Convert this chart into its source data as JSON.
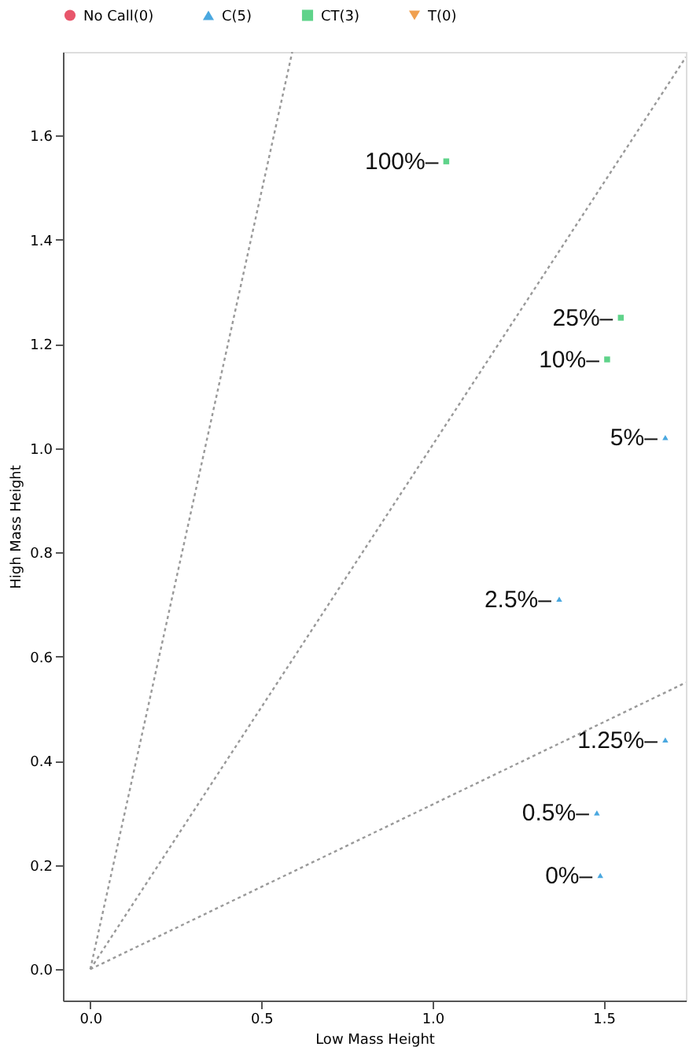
{
  "chart_data": {
    "type": "scatter",
    "xlabel": "Low Mass Height",
    "ylabel": "High Mass Height",
    "xlim": [
      -0.08,
      1.74
    ],
    "ylim": [
      -0.06,
      1.76
    ],
    "xticks": [
      {
        "value": 0,
        "label": "0.0"
      },
      0.5,
      {
        "value": 1,
        "label": "1.0"
      },
      1.5
    ],
    "yticks": [
      {
        "value": 0,
        "label": "0.0"
      },
      0.2,
      0.4,
      0.6,
      0.8,
      {
        "value": 1,
        "label": "1.0"
      },
      1.2,
      1.4,
      1.6
    ],
    "legend": "top",
    "grid": false,
    "series": [
      {
        "name": "No Call(0)",
        "color": "#e8566b",
        "marker": "circle"
      },
      {
        "name": "C(5)",
        "color": "#4aa8e0",
        "marker": "triangle",
        "x": [
          1.68,
          1.37,
          1.68,
          1.48,
          1.49
        ],
        "values": [
          1.02,
          0.71,
          0.44,
          0.3,
          0.18
        ]
      },
      {
        "name": "CT(3)",
        "color": "#5fd38a",
        "marker": "square",
        "x": [
          1.04,
          1.55,
          1.51
        ],
        "values": [
          1.55,
          1.25,
          1.17
        ]
      },
      {
        "name": "T(0)",
        "color": "#f0a050",
        "marker": "triangle-down"
      },
      {
        "type": "line",
        "color": "#999999",
        "line_style": "dotted",
        "x": [
          0,
          0.59
        ],
        "values": [
          0,
          1.76
        ]
      },
      {
        "type": "line",
        "color": "#999999",
        "line_style": "dotted",
        "x": [
          0,
          1.74
        ],
        "values": [
          0,
          1.75
        ]
      },
      {
        "type": "line",
        "color": "#999999",
        "line_style": "dotted",
        "x": [
          0,
          1.74
        ],
        "values": [
          0,
          0.55
        ]
      }
    ],
    "annotations": [
      {
        "text": "100%–",
        "x": 1.04,
        "y": 1.55
      },
      {
        "text": "25%–",
        "x": 1.55,
        "y": 1.25
      },
      {
        "text": "10%–",
        "x": 1.51,
        "y": 1.17
      },
      {
        "text": "5%–",
        "x": 1.68,
        "y": 1.02
      },
      {
        "text": "2.5%–",
        "x": 1.37,
        "y": 0.71
      },
      {
        "text": "1.25%–",
        "x": 1.68,
        "y": 0.44
      },
      {
        "text": "0.5%–",
        "x": 1.48,
        "y": 0.3
      },
      {
        "text": "0%–",
        "x": 1.49,
        "y": 0.18
      }
    ]
  }
}
